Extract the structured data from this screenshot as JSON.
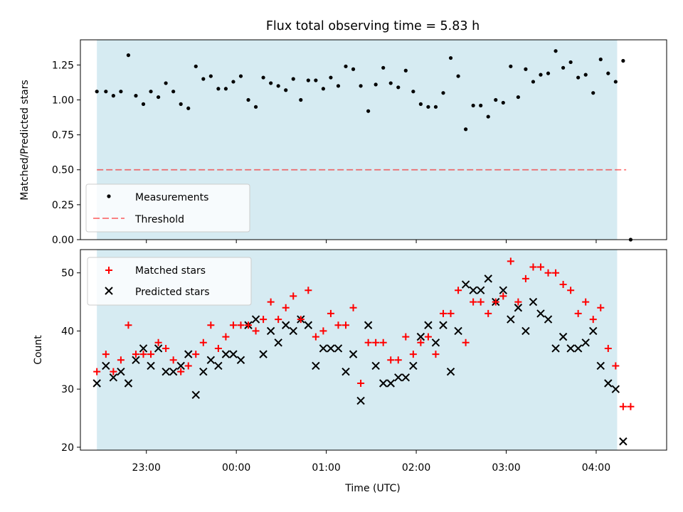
{
  "title": "Flux total observing time = 5.83 h",
  "xlabel": "Time (UTC)",
  "x_ticks": [
    "23:00",
    "00:00",
    "01:00",
    "02:00",
    "03:00",
    "04:00"
  ],
  "colors": {
    "band": "#add8e6",
    "measurement": "#000000",
    "threshold": "#ff0000",
    "matched": "#ff0000",
    "predicted": "#000000"
  },
  "chart_data": [
    {
      "type": "scatter",
      "title": "Flux total observing time = 5.83 h",
      "xlabel": "",
      "ylabel": "Matched/Predicted stars",
      "xlim": [
        "22:16",
        "04:47"
      ],
      "ylim": [
        0,
        1.43
      ],
      "y_ticks": [
        "0.00",
        "0.25",
        "0.50",
        "0.75",
        "1.00",
        "1.25"
      ],
      "shaded_span": [
        "22:27",
        "04:14"
      ],
      "grid": false,
      "legend": "lower-left",
      "series": [
        {
          "name": "Measurements",
          "marker": "dot",
          "points": [
            [
              "22:27",
              1.06
            ],
            [
              "22:33",
              1.06
            ],
            [
              "22:38",
              1.03
            ],
            [
              "22:43",
              1.06
            ],
            [
              "22:48",
              1.32
            ],
            [
              "22:53",
              1.03
            ],
            [
              "22:58",
              0.97
            ],
            [
              "23:03",
              1.06
            ],
            [
              "23:08",
              1.02
            ],
            [
              "23:13",
              1.12
            ],
            [
              "23:18",
              1.06
            ],
            [
              "23:23",
              0.97
            ],
            [
              "23:28",
              0.94
            ],
            [
              "23:33",
              1.24
            ],
            [
              "23:38",
              1.15
            ],
            [
              "23:43",
              1.17
            ],
            [
              "23:48",
              1.08
            ],
            [
              "23:53",
              1.08
            ],
            [
              "23:58",
              1.13
            ],
            [
              "00:03",
              1.17
            ],
            [
              "00:08",
              1.0
            ],
            [
              "00:13",
              0.95
            ],
            [
              "00:18",
              1.16
            ],
            [
              "00:23",
              1.12
            ],
            [
              "00:28",
              1.1
            ],
            [
              "00:33",
              1.07
            ],
            [
              "00:38",
              1.15
            ],
            [
              "00:43",
              1.0
            ],
            [
              "00:48",
              1.14
            ],
            [
              "00:53",
              1.14
            ],
            [
              "00:58",
              1.08
            ],
            [
              "01:03",
              1.16
            ],
            [
              "01:08",
              1.1
            ],
            [
              "01:13",
              1.24
            ],
            [
              "01:18",
              1.22
            ],
            [
              "01:23",
              1.1
            ],
            [
              "01:28",
              0.92
            ],
            [
              "01:33",
              1.11
            ],
            [
              "01:38",
              1.23
            ],
            [
              "01:43",
              1.12
            ],
            [
              "01:48",
              1.09
            ],
            [
              "01:53",
              1.21
            ],
            [
              "01:58",
              1.06
            ],
            [
              "02:03",
              0.97
            ],
            [
              "02:08",
              0.95
            ],
            [
              "02:13",
              0.95
            ],
            [
              "02:18",
              1.05
            ],
            [
              "02:23",
              1.3
            ],
            [
              "02:28",
              1.17
            ],
            [
              "02:33",
              0.79
            ],
            [
              "02:38",
              0.96
            ],
            [
              "02:43",
              0.96
            ],
            [
              "02:48",
              0.88
            ],
            [
              "02:53",
              1.0
            ],
            [
              "02:58",
              0.98
            ],
            [
              "03:03",
              1.24
            ],
            [
              "03:08",
              1.02
            ],
            [
              "03:13",
              1.22
            ],
            [
              "03:18",
              1.13
            ],
            [
              "03:23",
              1.18
            ],
            [
              "03:28",
              1.19
            ],
            [
              "03:33",
              1.35
            ],
            [
              "03:38",
              1.23
            ],
            [
              "03:43",
              1.27
            ],
            [
              "03:48",
              1.16
            ],
            [
              "03:53",
              1.18
            ],
            [
              "03:58",
              1.05
            ],
            [
              "04:03",
              1.29
            ],
            [
              "04:08",
              1.19
            ],
            [
              "04:13",
              1.13
            ],
            [
              "04:18",
              1.28
            ],
            [
              "04:23",
              0.0
            ]
          ]
        },
        {
          "name": "Threshold",
          "marker": "dashed-line",
          "points": [
            [
              "22:27",
              0.5
            ],
            [
              "04:20",
              0.5
            ]
          ]
        }
      ]
    },
    {
      "type": "scatter",
      "xlabel": "Time (UTC)",
      "ylabel": "Count",
      "xlim": [
        "22:16",
        "04:47"
      ],
      "ylim": [
        19.5,
        54
      ],
      "y_ticks": [
        "20",
        "30",
        "40",
        "50"
      ],
      "shaded_span": [
        "22:27",
        "04:14"
      ],
      "grid": false,
      "legend": "upper-left",
      "series": [
        {
          "name": "Matched stars",
          "marker": "plus",
          "points": [
            [
              "22:27",
              33
            ],
            [
              "22:33",
              36
            ],
            [
              "22:38",
              33
            ],
            [
              "22:43",
              35
            ],
            [
              "22:48",
              41
            ],
            [
              "22:53",
              36
            ],
            [
              "22:58",
              36
            ],
            [
              "23:03",
              36
            ],
            [
              "23:08",
              38
            ],
            [
              "23:13",
              37
            ],
            [
              "23:18",
              35
            ],
            [
              "23:23",
              33
            ],
            [
              "23:28",
              34
            ],
            [
              "23:33",
              36
            ],
            [
              "23:38",
              38
            ],
            [
              "23:43",
              41
            ],
            [
              "23:48",
              37
            ],
            [
              "23:53",
              39
            ],
            [
              "23:58",
              41
            ],
            [
              "00:03",
              41
            ],
            [
              "00:08",
              41
            ],
            [
              "00:13",
              40
            ],
            [
              "00:18",
              42
            ],
            [
              "00:23",
              45
            ],
            [
              "00:28",
              42
            ],
            [
              "00:33",
              44
            ],
            [
              "00:38",
              46
            ],
            [
              "00:43",
              42
            ],
            [
              "00:48",
              47
            ],
            [
              "00:53",
              39
            ],
            [
              "00:58",
              40
            ],
            [
              "01:03",
              43
            ],
            [
              "01:08",
              41
            ],
            [
              "01:13",
              41
            ],
            [
              "01:18",
              44
            ],
            [
              "01:23",
              31
            ],
            [
              "01:28",
              38
            ],
            [
              "01:33",
              38
            ],
            [
              "01:38",
              38
            ],
            [
              "01:43",
              35
            ],
            [
              "01:48",
              35
            ],
            [
              "01:53",
              39
            ],
            [
              "01:58",
              36
            ],
            [
              "02:03",
              38
            ],
            [
              "02:08",
              39
            ],
            [
              "02:13",
              36
            ],
            [
              "02:18",
              43
            ],
            [
              "02:23",
              43
            ],
            [
              "02:28",
              47
            ],
            [
              "02:33",
              38
            ],
            [
              "02:38",
              45
            ],
            [
              "02:43",
              45
            ],
            [
              "02:48",
              43
            ],
            [
              "02:53",
              45
            ],
            [
              "02:58",
              46
            ],
            [
              "03:03",
              52
            ],
            [
              "03:08",
              45
            ],
            [
              "03:13",
              49
            ],
            [
              "03:18",
              51
            ],
            [
              "03:23",
              51
            ],
            [
              "03:28",
              50
            ],
            [
              "03:33",
              50
            ],
            [
              "03:38",
              48
            ],
            [
              "03:43",
              47
            ],
            [
              "03:48",
              43
            ],
            [
              "03:53",
              45
            ],
            [
              "03:58",
              42
            ],
            [
              "04:03",
              44
            ],
            [
              "04:08",
              37
            ],
            [
              "04:13",
              34
            ],
            [
              "04:18",
              27
            ],
            [
              "04:23",
              27
            ]
          ]
        },
        {
          "name": "Predicted stars",
          "marker": "x",
          "points": [
            [
              "22:27",
              31
            ],
            [
              "22:33",
              34
            ],
            [
              "22:38",
              32
            ],
            [
              "22:43",
              33
            ],
            [
              "22:48",
              31
            ],
            [
              "22:53",
              35
            ],
            [
              "22:58",
              37
            ],
            [
              "23:03",
              34
            ],
            [
              "23:08",
              37
            ],
            [
              "23:13",
              33
            ],
            [
              "23:18",
              33
            ],
            [
              "23:23",
              34
            ],
            [
              "23:28",
              36
            ],
            [
              "23:33",
              29
            ],
            [
              "23:38",
              33
            ],
            [
              "23:43",
              35
            ],
            [
              "23:48",
              34
            ],
            [
              "23:53",
              36
            ],
            [
              "23:58",
              36
            ],
            [
              "00:03",
              35
            ],
            [
              "00:08",
              41
            ],
            [
              "00:13",
              42
            ],
            [
              "00:18",
              36
            ],
            [
              "00:23",
              40
            ],
            [
              "00:28",
              38
            ],
            [
              "00:33",
              41
            ],
            [
              "00:38",
              40
            ],
            [
              "00:43",
              42
            ],
            [
              "00:48",
              41
            ],
            [
              "00:53",
              34
            ],
            [
              "00:58",
              37
            ],
            [
              "01:03",
              37
            ],
            [
              "01:08",
              37
            ],
            [
              "01:13",
              33
            ],
            [
              "01:18",
              36
            ],
            [
              "01:23",
              28
            ],
            [
              "01:28",
              41
            ],
            [
              "01:33",
              34
            ],
            [
              "01:38",
              31
            ],
            [
              "01:43",
              31
            ],
            [
              "01:48",
              32
            ],
            [
              "01:53",
              32
            ],
            [
              "01:58",
              34
            ],
            [
              "02:03",
              39
            ],
            [
              "02:08",
              41
            ],
            [
              "02:13",
              38
            ],
            [
              "02:18",
              41
            ],
            [
              "02:23",
              33
            ],
            [
              "02:28",
              40
            ],
            [
              "02:33",
              48
            ],
            [
              "02:38",
              47
            ],
            [
              "02:43",
              47
            ],
            [
              "02:48",
              49
            ],
            [
              "02:53",
              45
            ],
            [
              "02:58",
              47
            ],
            [
              "03:03",
              42
            ],
            [
              "03:08",
              44
            ],
            [
              "03:13",
              40
            ],
            [
              "03:18",
              45
            ],
            [
              "03:23",
              43
            ],
            [
              "03:28",
              42
            ],
            [
              "03:33",
              37
            ],
            [
              "03:38",
              39
            ],
            [
              "03:43",
              37
            ],
            [
              "03:48",
              37
            ],
            [
              "03:53",
              38
            ],
            [
              "03:58",
              40
            ],
            [
              "04:03",
              34
            ],
            [
              "04:08",
              31
            ],
            [
              "04:13",
              30
            ],
            [
              "04:18",
              21
            ]
          ]
        }
      ]
    }
  ]
}
